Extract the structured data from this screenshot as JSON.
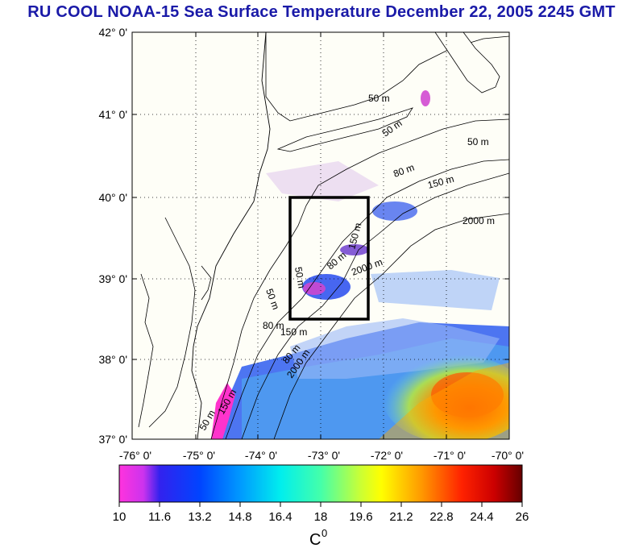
{
  "title": "RU COOL  NOAA-15 Sea Surface Temperature December 22, 2005 2245 GMT",
  "map": {
    "lat_labels": [
      "42° 0'",
      "41° 0'",
      "40° 0'",
      "39° 0'",
      "38° 0'",
      "37° 0'"
    ],
    "lon_labels": [
      "-76° 0'",
      "-75° 0'",
      "-74° 0'",
      "-73° 0'",
      "-72° 0'",
      "-71° 0'",
      "-70° 0'"
    ],
    "lat_range": [
      37,
      42
    ],
    "lon_range": [
      -76,
      -70
    ],
    "grid": "dotted",
    "study_box": {
      "lon": [
        -73.4,
        -72.3
      ],
      "lat": [
        38.5,
        40.0
      ]
    },
    "contour_labels": [
      "50 m",
      "50 m",
      "50 m",
      "80 m",
      "150 m",
      "2000 m",
      "80 m",
      "150 m",
      "2000 m",
      "50 m",
      "80 m",
      "150 m",
      "50 m",
      "80 m",
      "2000 m",
      "150 m",
      "50 m"
    ],
    "colors": {
      "land": "#fefef7",
      "coast": "#000000"
    }
  },
  "colorbar": {
    "ticks": [
      "10",
      "11.6",
      "13.2",
      "14.8",
      "16.4",
      "18",
      "19.6",
      "21.2",
      "22.8",
      "24.4",
      "26"
    ],
    "min": 10,
    "max": 26,
    "unit_label": "C",
    "unit_superscript": "0",
    "colors": [
      "#ff33cc",
      "#8833ee",
      "#0000ff",
      "#0099ff",
      "#00ffff",
      "#66ff99",
      "#ffff00",
      "#ff9900",
      "#ff2200",
      "#aa0000",
      "#660000"
    ]
  }
}
